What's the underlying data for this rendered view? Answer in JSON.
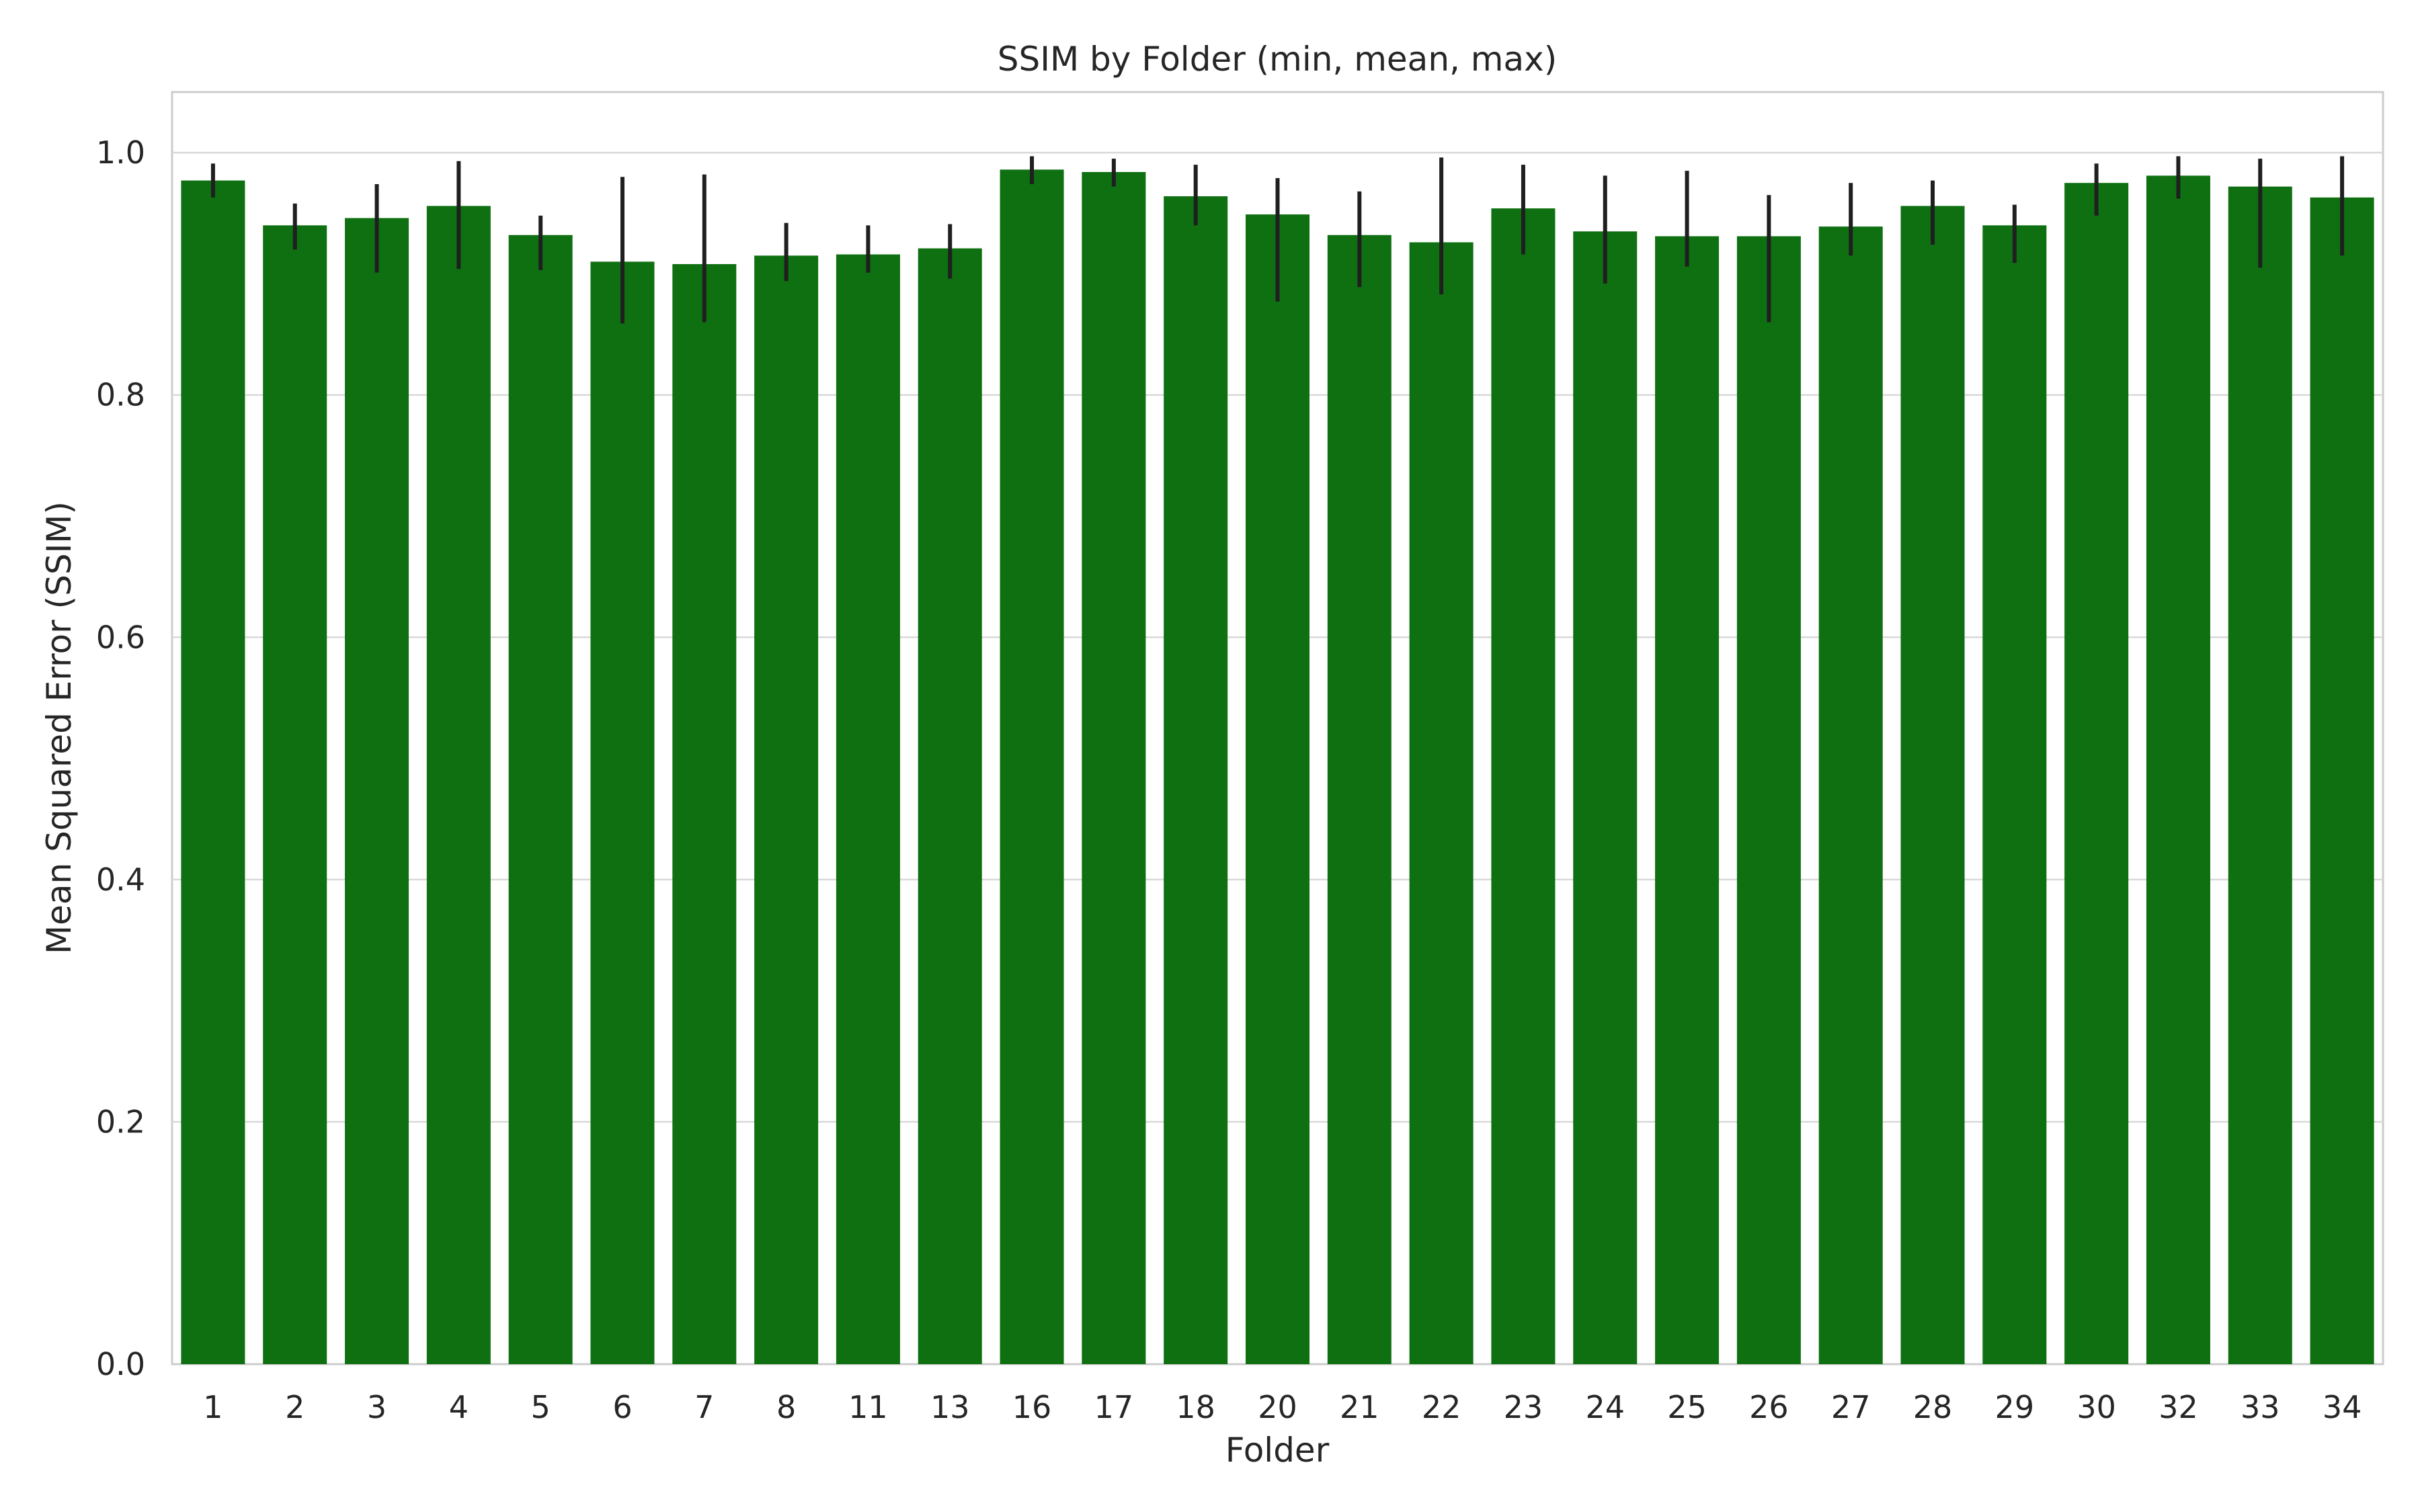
{
  "chart_data": {
    "type": "bar",
    "title": "SSIM by Folder (min, mean, max)",
    "xlabel": "Folder",
    "ylabel": "Mean Squared Error (SSIM)",
    "ylim": [
      0.0,
      1.05
    ],
    "yticks": [
      0.0,
      0.2,
      0.4,
      0.6,
      0.8,
      1.0
    ],
    "ytick_labels": [
      "0.0",
      "0.2",
      "0.4",
      "0.6",
      "0.8",
      "1.0"
    ],
    "grid": "horizontal",
    "bar_color": "#0f7012",
    "error_color": "#1f1f1f",
    "categories": [
      "1",
      "2",
      "3",
      "4",
      "5",
      "6",
      "7",
      "8",
      "11",
      "13",
      "16",
      "17",
      "18",
      "20",
      "21",
      "22",
      "23",
      "24",
      "25",
      "26",
      "27",
      "28",
      "29",
      "30",
      "32",
      "33",
      "34"
    ],
    "values": [
      0.977,
      0.94,
      0.946,
      0.956,
      0.932,
      0.91,
      0.908,
      0.915,
      0.916,
      0.921,
      0.986,
      0.984,
      0.964,
      0.949,
      0.932,
      0.926,
      0.954,
      0.935,
      0.931,
      0.931,
      0.939,
      0.956,
      0.94,
      0.975,
      0.981,
      0.972,
      0.963
    ],
    "min": [
      0.963,
      0.92,
      0.901,
      0.904,
      0.903,
      0.859,
      0.86,
      0.894,
      0.901,
      0.896,
      0.974,
      0.972,
      0.94,
      0.877,
      0.889,
      0.883,
      0.916,
      0.892,
      0.906,
      0.86,
      0.915,
      0.924,
      0.909,
      0.948,
      0.962,
      0.905,
      0.915
    ],
    "max": [
      0.991,
      0.958,
      0.974,
      0.993,
      0.948,
      0.98,
      0.982,
      0.942,
      0.94,
      0.941,
      0.997,
      0.995,
      0.99,
      0.979,
      0.968,
      0.996,
      0.99,
      0.981,
      0.985,
      0.965,
      0.975,
      0.977,
      0.957,
      0.991,
      0.997,
      0.995,
      0.997
    ]
  }
}
